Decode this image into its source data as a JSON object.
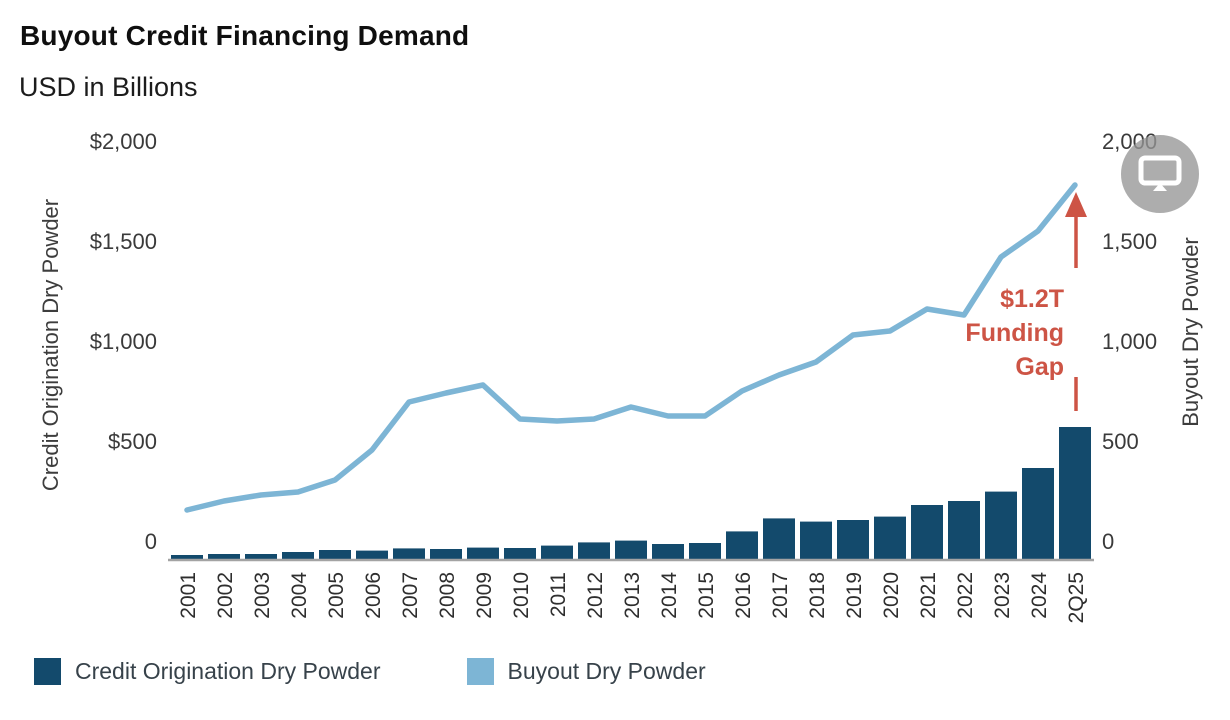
{
  "header": {
    "title": "Buyout Credit Financing Demand",
    "subtitle": "USD in Billions"
  },
  "chart_data": {
    "type": "bar",
    "subtype": "dual-axis bar + line combo",
    "categories": [
      "2001",
      "2002",
      "2003",
      "2004",
      "2005",
      "2006",
      "2007",
      "2008",
      "2009",
      "2010",
      "2011",
      "2012",
      "2013",
      "2014",
      "2015",
      "2016",
      "2017",
      "2018",
      "2019",
      "2020",
      "2021",
      "2022",
      "2023",
      "2024",
      "2Q25"
    ],
    "series": [
      {
        "name": "Credit Origination Dry Powder",
        "render": "bar",
        "axis": "left",
        "color": "#134a6c",
        "values": [
          20,
          25,
          25,
          35,
          45,
          42,
          53,
          50,
          57,
          55,
          67,
          83,
          92,
          75,
          80,
          138,
          203,
          187,
          195,
          212,
          270,
          290,
          337,
          455,
          660
        ]
      },
      {
        "name": "Buyout Dry Powder",
        "render": "line",
        "axis": "right",
        "color": "#7db5d5",
        "values": [
          245,
          290,
          320,
          335,
          395,
          545,
          785,
          830,
          870,
          700,
          690,
          700,
          760,
          715,
          715,
          840,
          920,
          985,
          1120,
          1140,
          1250,
          1220,
          1510,
          1640,
          1870
        ]
      }
    ],
    "left_axis": {
      "title": "Credit Origination Dry Powder",
      "tick_labels": [
        "$2,000",
        "$1,500",
        "$1,000",
        "$500",
        "0"
      ],
      "tick_values": [
        2000,
        1500,
        1000,
        500,
        0
      ],
      "range": [
        0,
        2000
      ]
    },
    "right_axis": {
      "title": "Buyout Dry Powder",
      "tick_labels": [
        "2,000",
        "1,500",
        "1,000",
        "500",
        "0"
      ],
      "tick_values": [
        2000,
        1500,
        1000,
        500,
        0
      ],
      "range": [
        0,
        2000
      ]
    },
    "grid": "off",
    "legend_position": "bottom-left",
    "annotation": {
      "lines": [
        "$1.2T",
        "Funding",
        "Gap"
      ],
      "text": "$1.2T Funding Gap",
      "color": "#cd5445",
      "arrow": "vertical arrow from top of 2Q25 bar up to line endpoint"
    }
  },
  "legend": {
    "items": [
      {
        "label": "Credit Origination Dry Powder",
        "color": "#134a6c"
      },
      {
        "label": "Buyout Dry Powder",
        "color": "#7db5d5"
      }
    ]
  },
  "colors": {
    "bar": "#134a6c",
    "line": "#7db5d5",
    "accent_red": "#cd5445",
    "axis_line": "#a3a3a3",
    "tick_text": "#3a3a3a",
    "axis_title_text": "#3d3d3d",
    "x_label_text": "#2e2e2e"
  },
  "floating_button": {
    "icon": "monitor-icon"
  }
}
